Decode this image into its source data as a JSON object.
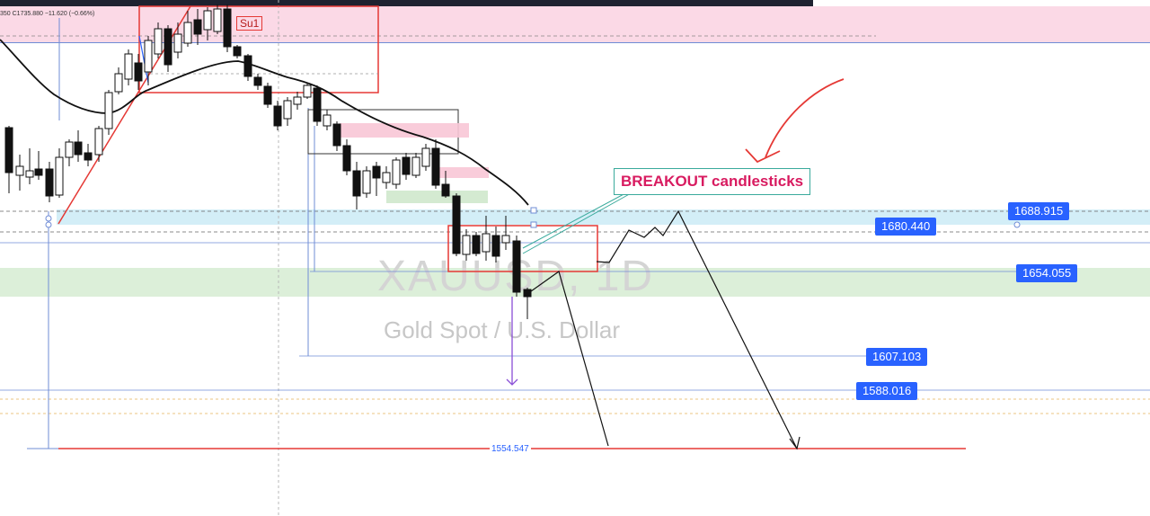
{
  "header": {
    "ohlc_text": "350 C1735.880 −11.620 (−0.66%)"
  },
  "watermark": {
    "ticker": "XAUUSD, 1D",
    "description": "Gold Spot / U.S. Dollar"
  },
  "annotations": {
    "breakout_label": "BREAKOUT candlesticks",
    "su1_label": "Su1"
  },
  "price_levels": {
    "p1688": "1688.915",
    "p1680": "1680.440",
    "p1654": "1654.055",
    "p1607": "1607.103",
    "p1588": "1588.016",
    "p1554": "1554.547"
  },
  "colors": {
    "price_tag": "#2962ff",
    "supply_zone": "#fbd9e6",
    "blue_zone": "#d3eef7",
    "demand_zone": "#dcefd9",
    "annotation_red": "#e53935",
    "breakout_text": "#d81b60"
  },
  "icons": [
    "alert-arrow-icon"
  ]
}
